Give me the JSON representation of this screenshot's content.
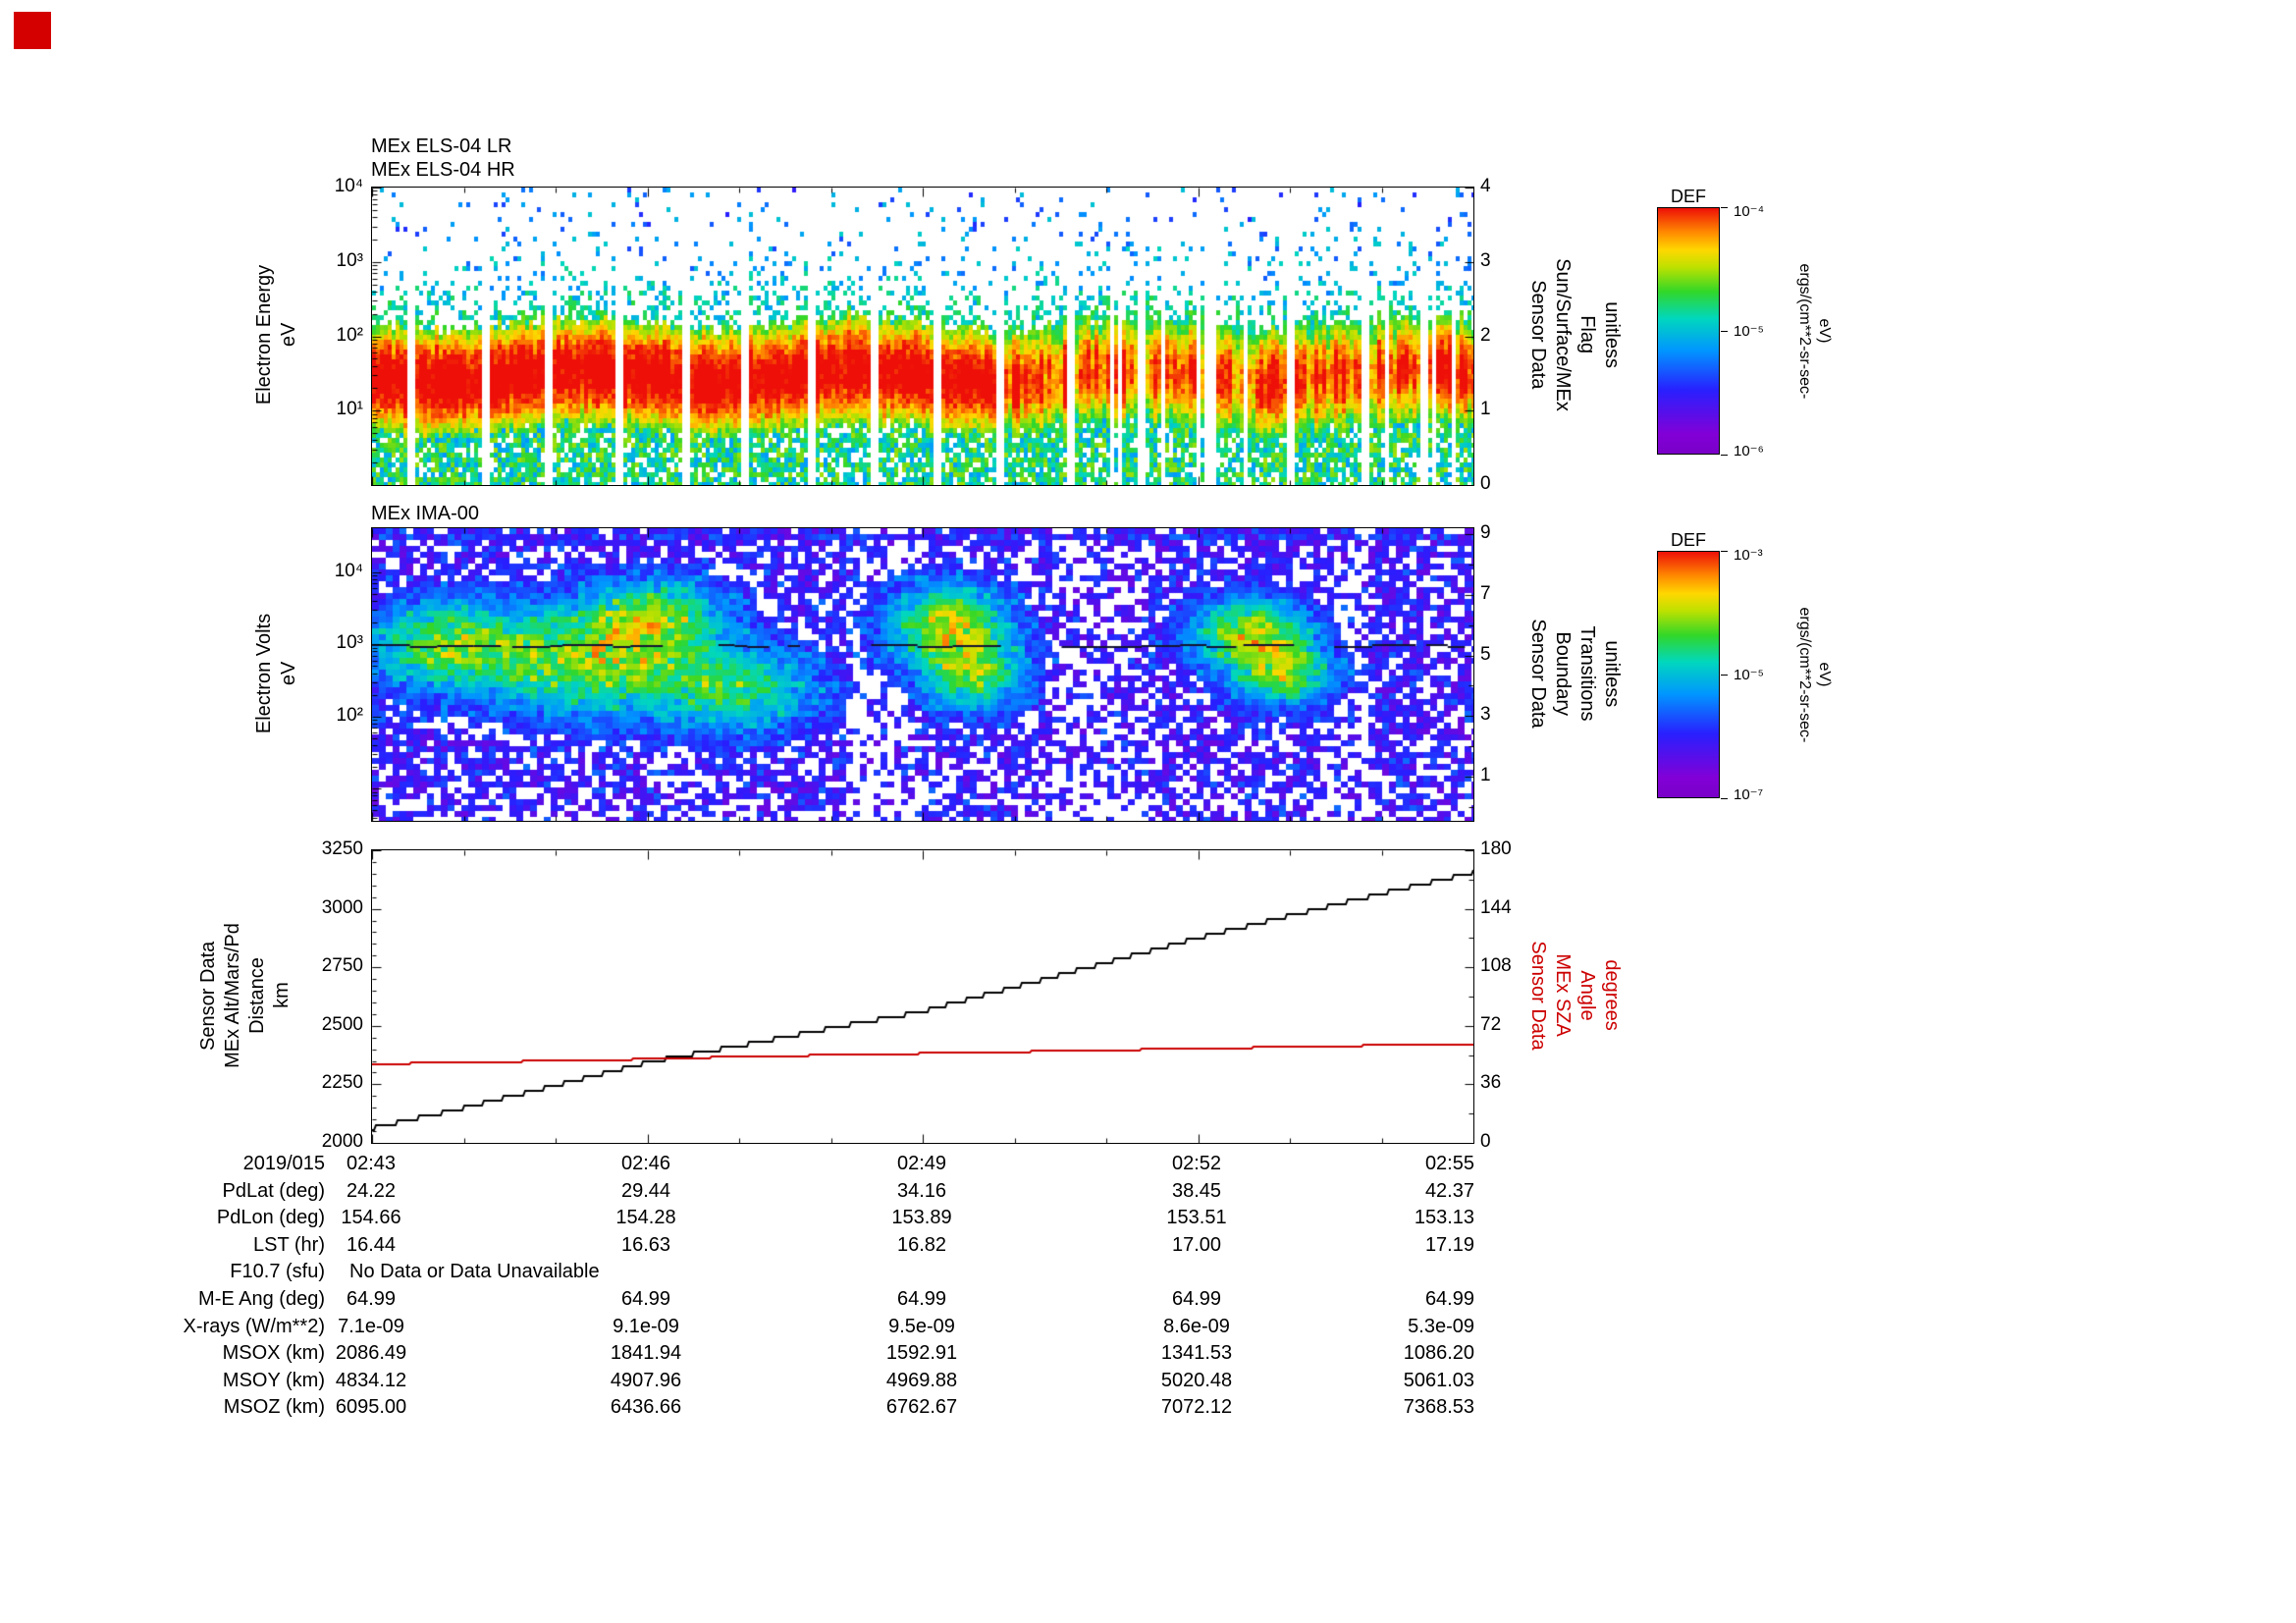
{
  "marker_color": "#d40000",
  "panels": {
    "els": {
      "title1": "MEx ELS-04 LR",
      "title2": "MEx ELS-04 HR",
      "ylabel": "Electron Energy\neV",
      "right_label": "Sensor Data\nSun/Surface/MEx\nFlag\nunitless",
      "yticks": [
        "10⁴",
        "10³",
        "10²",
        "10¹"
      ],
      "rticks": [
        "4",
        "3",
        "2",
        "1",
        "0"
      ]
    },
    "ima": {
      "title": "MEx IMA-00",
      "ylabel": "Electron Volts\neV",
      "right_label": "Sensor Data\nBoundary\nTransitions\nunitless",
      "yticks": [
        "10⁴",
        "10³",
        "10²"
      ],
      "rticks": [
        "9",
        "7",
        "5",
        "3",
        "1"
      ]
    },
    "alt": {
      "ylabel": "Sensor Data\nMEx Alt/Mars/Pd\nDistance\nkm",
      "right_label": "Sensor Data\nMEx SZA\nAngle\ndegrees",
      "right_label_color": "#cc0000",
      "yticks": [
        "3250",
        "3000",
        "2750",
        "2500",
        "2250",
        "2000"
      ],
      "rticks": [
        "180",
        "144",
        "108",
        "72",
        "36",
        "0"
      ]
    }
  },
  "colorbars": [
    {
      "title": "DEF",
      "units": "ergs/(cm**2-sr-sec-eV)",
      "ticks": [
        "10⁻⁴",
        "10⁻⁵",
        "10⁻⁶"
      ]
    },
    {
      "title": "DEF",
      "units": "ergs/(cm**2-sr-sec-eV)",
      "ticks": [
        "10⁻³",
        "10⁻⁵",
        "10⁻⁷"
      ]
    }
  ],
  "table": {
    "rows": [
      {
        "label": "2019/015",
        "values": [
          "02:43",
          "02:46",
          "02:49",
          "02:52",
          "02:55"
        ]
      },
      {
        "label": "PdLat (deg)",
        "values": [
          "24.22",
          "29.44",
          "34.16",
          "38.45",
          "42.37"
        ]
      },
      {
        "label": "PdLon (deg)",
        "values": [
          "154.66",
          "154.28",
          "153.89",
          "153.51",
          "153.13"
        ]
      },
      {
        "label": "LST (hr)",
        "values": [
          "16.44",
          "16.63",
          "16.82",
          "17.00",
          "17.19"
        ]
      },
      {
        "label": "F10.7 (sfu)",
        "span": "No Data or Data Unavailable"
      },
      {
        "label": "M-E Ang (deg)",
        "values": [
          "64.99",
          "64.99",
          "64.99",
          "64.99",
          "64.99"
        ]
      },
      {
        "label": "X-rays (W/m**2)",
        "values": [
          "7.1e-09",
          "9.1e-09",
          "9.5e-09",
          "8.6e-09",
          "5.3e-09"
        ]
      },
      {
        "label": "MSOX (km)",
        "values": [
          "2086.49",
          "1841.94",
          "1592.91",
          "1341.53",
          "1086.20"
        ]
      },
      {
        "label": "MSOY (km)",
        "values": [
          "4834.12",
          "4907.96",
          "4969.88",
          "5020.48",
          "5061.03"
        ]
      },
      {
        "label": "MSOZ (km)",
        "values": [
          "6095.00",
          "6436.66",
          "6762.67",
          "7072.12",
          "7368.53"
        ]
      }
    ]
  },
  "chart_data": [
    {
      "type": "heatmap",
      "title": "MEx ELS-04 LR / MEx ELS-04 HR",
      "ylabel": "Electron Energy (eV)",
      "yscale": "log",
      "ylim": [
        1,
        10000
      ],
      "x_ticks": [
        "02:43",
        "02:46",
        "02:49",
        "02:52",
        "02:55"
      ],
      "value_label": "DEF ergs/(cm**2-sr-sec-eV)",
      "value_range": [
        "1e-6",
        "1e-4"
      ],
      "right_axis": {
        "label": "Sensor Data Sun/Surface/MEx Flag (unitless)",
        "ylim": [
          0,
          4
        ]
      },
      "summary": "Intense red electron flux band between roughly 8 and 200 eV for the whole interval, fringed by yellow-green then cyan; moderate green/cyan flux below the band down to 1 eV; sparse scattered blue counts up to 10^4 eV; regular narrow white vertical data gaps; the band weakens and fragments after about 02:49."
    },
    {
      "type": "heatmap",
      "title": "MEx IMA-00",
      "ylabel": "Electron Volts (eV)",
      "yscale": "log",
      "ylim": [
        4,
        40000
      ],
      "x_ticks": [
        "02:43",
        "02:46",
        "02:49",
        "02:52",
        "02:55"
      ],
      "value_label": "DEF ergs/(cm**2-sr-sec-eV)",
      "value_range": [
        "1e-7",
        "1e-3"
      ],
      "right_axis": {
        "label": "Sensor Data Boundary Transitions (unitless)",
        "ylim": [
          0,
          9
        ]
      },
      "summary": "Sparse mostly blue-purple ion counts over the full energy range with many white gaps; brighter cyan-green patches near 02:43-02:46, about 02:49 and about 02:53 at 300-3000 eV; dense row of counts near the top of the range and a thin dark trace near 500 eV."
    },
    {
      "type": "line",
      "title": "MEx altitude and solar zenith angle vs time",
      "x_ticks": [
        "02:43",
        "02:46",
        "02:49",
        "02:52",
        "02:55"
      ],
      "x_minutes": [
        0,
        1,
        2,
        3,
        4,
        5,
        6,
        7,
        8,
        9,
        10,
        11,
        12
      ],
      "left_ylim": [
        2000,
        3250
      ],
      "right_ylim": [
        0,
        180
      ],
      "series": [
        {
          "name": "Sensor Data MEx Alt/Mars/Pd Distance (km)",
          "color": "#000000",
          "axis": "left",
          "values": [
            2062,
            2150,
            2245,
            2344,
            2415,
            2490,
            2562,
            2665,
            2770,
            2875,
            2970,
            3065,
            3156
          ]
        },
        {
          "name": "Sensor Data MEx SZA Angle (degrees)",
          "color": "#cc0000",
          "axis": "right",
          "values": [
            48.5,
            49.5,
            50.5,
            51.5,
            53,
            54,
            55,
            56,
            57,
            58,
            59,
            60,
            61
          ]
        }
      ]
    }
  ]
}
